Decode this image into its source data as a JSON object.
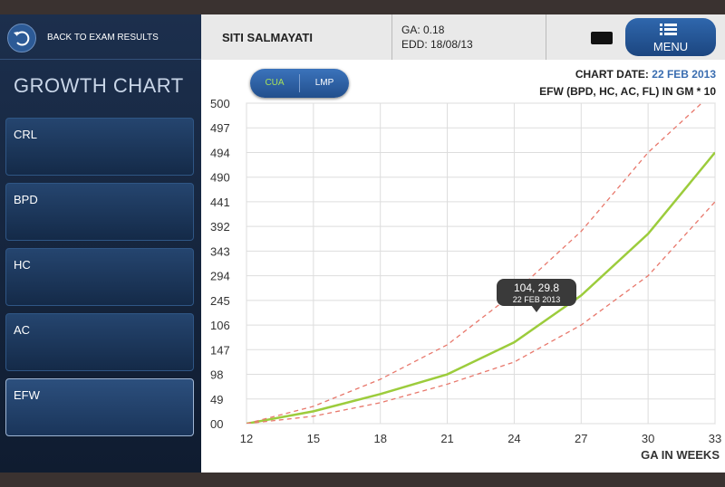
{
  "header": {
    "back": "BACK TO EXAM RESULTS",
    "patient": "SITI SALMAYATI",
    "ga": "GA: 0.18",
    "edd": "EDD: 18/08/13",
    "menu": "MENU"
  },
  "sidebar": {
    "title": "GROWTH CHART",
    "items": [
      "CRL",
      "BPD",
      "HC",
      "AC",
      "EFW"
    ],
    "selected": "EFW"
  },
  "toggle": {
    "options": [
      "CUA",
      "LMP"
    ],
    "active": "CUA"
  },
  "chart_date": {
    "label": "CHART DATE:",
    "value": "22 FEB 2013"
  },
  "tooltip": {
    "value": "104, 29.8",
    "date": "22 FEB 2013"
  },
  "chart_data": {
    "type": "line",
    "title": "EFW (BPD, HC, AC, FL) IN GM * 10",
    "x_label": "GA IN WEEKS",
    "xlim": [
      12,
      33
    ],
    "xticks": [
      12,
      15,
      18,
      21,
      24,
      27,
      30,
      33
    ],
    "ylim": [
      0,
      13
    ],
    "yticks": [
      {
        "value": 0,
        "label": "00"
      },
      {
        "value": 1,
        "label": "49"
      },
      {
        "value": 2,
        "label": "98"
      },
      {
        "value": 3,
        "label": "147"
      },
      {
        "value": 4,
        "label": "106"
      },
      {
        "value": 5,
        "label": "245"
      },
      {
        "value": 6,
        "label": "294"
      },
      {
        "value": 7,
        "label": "343"
      },
      {
        "value": 8,
        "label": "392"
      },
      {
        "value": 9,
        "label": "441"
      },
      {
        "value": 10,
        "label": "490"
      },
      {
        "value": 11,
        "label": "494"
      },
      {
        "value": 12,
        "label": "497"
      },
      {
        "value": 13,
        "label": "500"
      }
    ],
    "grid": true,
    "series": [
      {
        "color": "#9ccc3c",
        "dash": false,
        "x": [
          12,
          15,
          18,
          21,
          24,
          27,
          30,
          33
        ],
        "values": [
          0,
          0.5,
          1.2,
          2.0,
          3.3,
          5.2,
          7.7,
          11.0
        ]
      },
      {
        "color": "#e8786c",
        "dash": true,
        "x": [
          12,
          15,
          18,
          21,
          24,
          27,
          30,
          32.4
        ],
        "values": [
          0,
          0.7,
          1.8,
          3.2,
          5.3,
          7.8,
          11.0,
          13.0
        ]
      },
      {
        "color": "#e8786c",
        "dash": true,
        "x": [
          12,
          15,
          18,
          21,
          24,
          27,
          30,
          33
        ],
        "values": [
          0,
          0.3,
          0.85,
          1.6,
          2.5,
          4.0,
          6.0,
          9.0
        ]
      }
    ]
  }
}
